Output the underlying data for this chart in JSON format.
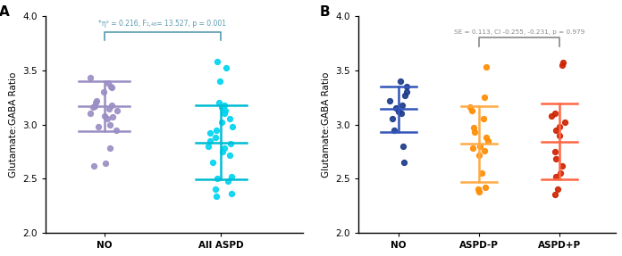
{
  "panel_A": {
    "label": "A",
    "groups": [
      "NO",
      "All ASPD"
    ],
    "colors": [
      "#9b8ec4",
      "#00bcd4"
    ],
    "dot_colors": [
      "#9b8ec4",
      "#00d4f0"
    ],
    "means": [
      3.17,
      2.83
    ],
    "sd_upper": [
      3.4,
      3.18
    ],
    "sd_lower": [
      2.94,
      2.49
    ],
    "NO_points": [
      3.34,
      3.43,
      3.38,
      3.35,
      3.3,
      3.22,
      3.2,
      3.18,
      3.17,
      3.16,
      3.14,
      3.13,
      3.1,
      3.08,
      3.07,
      3.05,
      3.0,
      2.98,
      2.95,
      2.78,
      2.64,
      2.62
    ],
    "ALLASPD_points": [
      3.58,
      3.52,
      3.4,
      3.2,
      3.18,
      3.16,
      3.13,
      3.1,
      3.05,
      3.02,
      2.98,
      2.95,
      2.92,
      2.88,
      2.85,
      2.82,
      2.8,
      2.78,
      2.75,
      2.72,
      2.65,
      2.52,
      2.5,
      2.48,
      2.4,
      2.36,
      2.34
    ],
    "stat_text": "*η² = 0.216, F₁,₄₈= 13.527, p = 0.001",
    "ylabel": "Glutamate:GABA Ratio",
    "ylim": [
      2.0,
      4.0
    ],
    "yticks": [
      2.0,
      2.5,
      3.0,
      3.5,
      4.0
    ]
  },
  "panel_B": {
    "label": "B",
    "groups": [
      "NO",
      "ASPD-P",
      "ASPD+P"
    ],
    "dot_colors": [
      "#1a3a8a",
      "#ff8c00",
      "#cc2200"
    ],
    "mean_colors": [
      "#3355bb",
      "#ffaa44",
      "#ff6644"
    ],
    "means": [
      3.14,
      2.82,
      2.84
    ],
    "sd_upper": [
      3.35,
      3.17,
      3.19
    ],
    "sd_lower": [
      2.93,
      2.47,
      2.49
    ],
    "NO_points": [
      3.4,
      3.35,
      3.3,
      3.27,
      3.22,
      3.18,
      3.15,
      3.12,
      3.1,
      3.05,
      2.95,
      2.8,
      2.65
    ],
    "ASPDP_points": [
      3.53,
      3.25,
      3.16,
      3.13,
      3.05,
      2.97,
      2.93,
      2.88,
      2.85,
      2.8,
      2.78,
      2.76,
      2.72,
      2.55,
      2.42,
      2.4,
      2.38
    ],
    "ASPDplusP_points": [
      3.57,
      3.55,
      3.1,
      3.08,
      3.02,
      2.98,
      2.95,
      2.9,
      2.75,
      2.68,
      2.62,
      2.55,
      2.52,
      2.4,
      2.35
    ],
    "stat_text": "SE = 0.113, CI -0.255, -0.231, p = 0.979",
    "ylabel": "Glutamate:GABA Ratio",
    "ylim": [
      2.0,
      4.0
    ],
    "yticks": [
      2.0,
      2.5,
      3.0,
      3.5,
      4.0
    ]
  }
}
